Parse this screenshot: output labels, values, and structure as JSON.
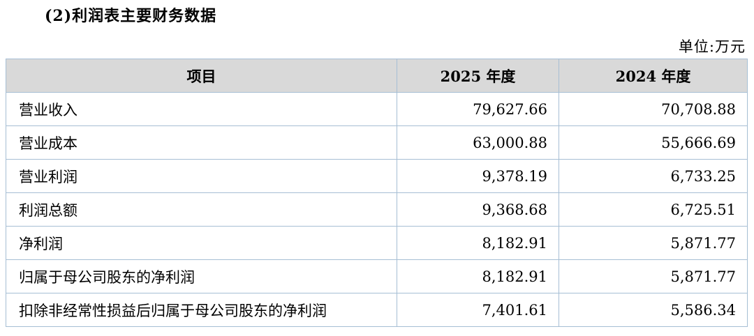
{
  "page": {
    "title": "(2)利润表主要财务数据",
    "unit_label": "单位:万元"
  },
  "colors": {
    "header_background": "#d9d9d9",
    "table_border": "#a6bed4",
    "text": "#000000",
    "page_background": "#ffffff"
  },
  "table": {
    "columns": [
      "项目",
      "2025 年度",
      "2024 年度"
    ],
    "rows": [
      {
        "item": "营业收入",
        "y2025": "79,627.66",
        "y2024": "70,708.88"
      },
      {
        "item": "营业成本",
        "y2025": "63,000.88",
        "y2024": "55,666.69"
      },
      {
        "item": "营业利润",
        "y2025": "9,378.19",
        "y2024": "6,733.25"
      },
      {
        "item": "利润总额",
        "y2025": "9,368.68",
        "y2024": "6,725.51"
      },
      {
        "item": "净利润",
        "y2025": "8,182.91",
        "y2024": "5,871.77"
      },
      {
        "item": "归属于母公司股东的净利润",
        "y2025": "8,182.91",
        "y2024": "5,871.77"
      },
      {
        "item": "扣除非经常性损益后归属于母公司股东的净利润",
        "y2025": "7,401.61",
        "y2024": "5,586.34"
      }
    ]
  }
}
